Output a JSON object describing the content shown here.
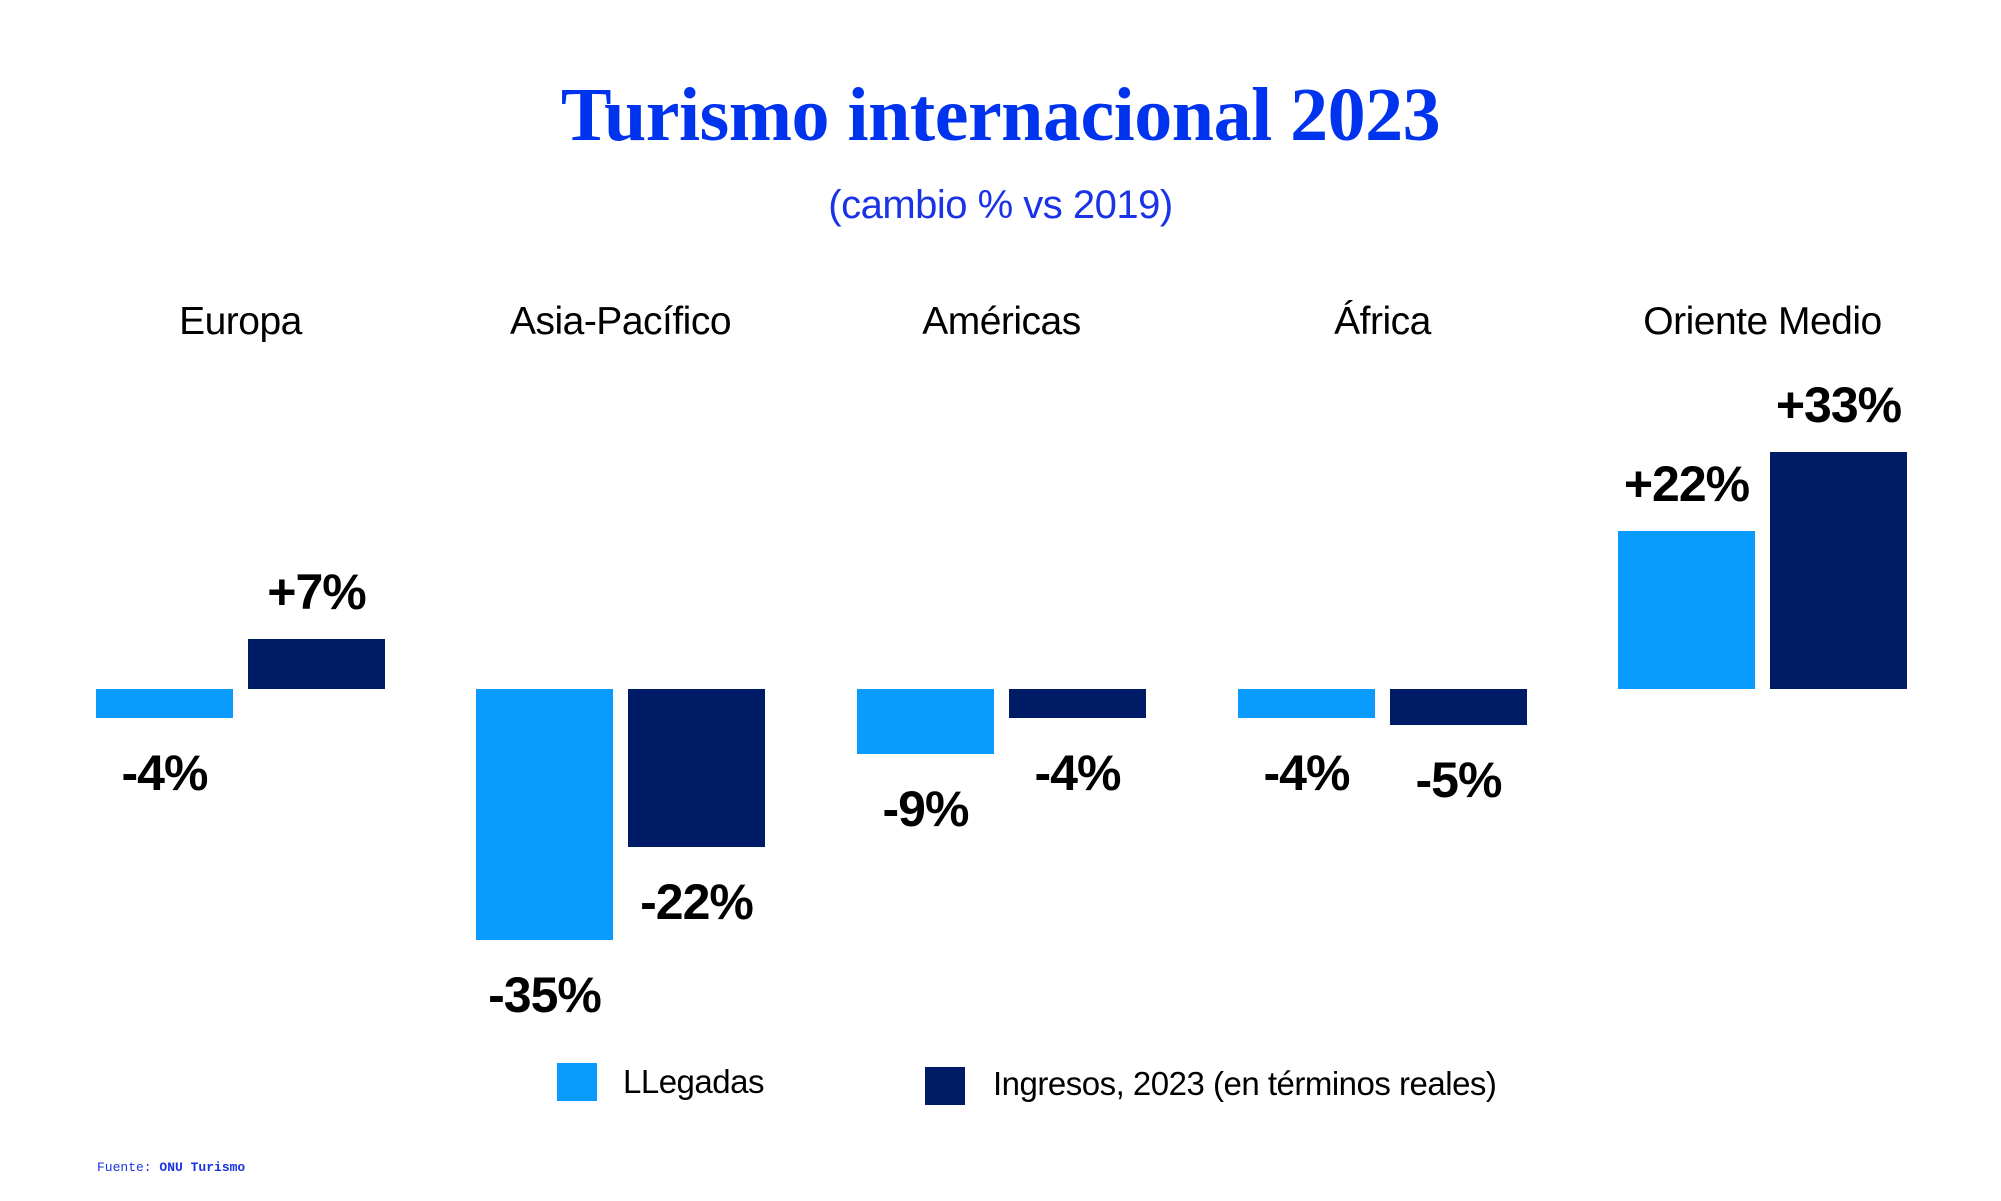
{
  "header": {
    "title": "Turismo internacional 2023",
    "subtitle": "(cambio % vs 2019)"
  },
  "colors": {
    "title": "#0033ee",
    "arrivals": "#0a9bff",
    "receipts": "#001b66"
  },
  "regions": [
    {
      "name": "Europa",
      "arrivals_label": "-4%",
      "receipts_label": "+7%"
    },
    {
      "name": "Asia-Pacífico",
      "arrivals_label": "-35%",
      "receipts_label": "-22%"
    },
    {
      "name": "Américas",
      "arrivals_label": "-9%",
      "receipts_label": "-4%"
    },
    {
      "name": "África",
      "arrivals_label": "-4%",
      "receipts_label": "-5%"
    },
    {
      "name": "Oriente Medio",
      "arrivals_label": "+22%",
      "receipts_label": "+33%"
    }
  ],
  "legend": {
    "arrivals": "LLegadas",
    "receipts": "Ingresos, 2023 (en términos reales)"
  },
  "source": {
    "prefix": "Fuente:",
    "name": "ONU Turismo"
  },
  "chart_data": {
    "type": "bar",
    "title": "Turismo internacional 2023",
    "subtitle": "(cambio % vs 2019)",
    "categories": [
      "Europa",
      "Asia-Pacífico",
      "Américas",
      "África",
      "Oriente Medio"
    ],
    "series": [
      {
        "name": "LLegadas",
        "color": "#0a9bff",
        "values": [
          -4,
          -35,
          -9,
          -4,
          22
        ]
      },
      {
        "name": "Ingresos, 2023 (en términos reales)",
        "color": "#001b66",
        "values": [
          7,
          -22,
          -4,
          -5,
          33
        ]
      }
    ],
    "xlabel": "",
    "ylabel": "",
    "ylim": [
      -35,
      33
    ],
    "grid": false,
    "axes_visible": false,
    "data_labels": true,
    "legend_position": "bottom",
    "source": "Fuente: ONU Turismo"
  }
}
